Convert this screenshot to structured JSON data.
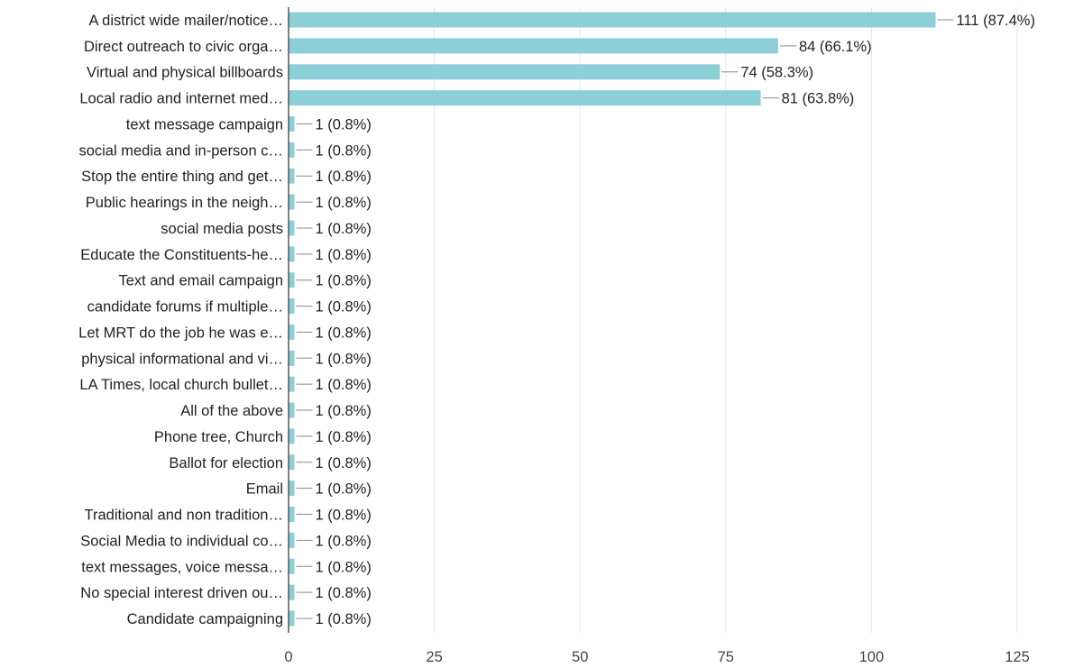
{
  "chart_data": {
    "type": "bar",
    "orientation": "horizontal",
    "title": "",
    "xlabel": "",
    "ylabel": "",
    "xlim": [
      0,
      125
    ],
    "ticks": [
      0,
      25,
      50,
      75,
      100,
      125
    ],
    "grid": true,
    "legend": "none",
    "bar_color": "#8ccfd6",
    "categories": [
      "A district wide mailer/notice…",
      "Direct outreach to civic orga…",
      "Virtual and physical billboards",
      "Local radio and internet med…",
      "text message campaign",
      "social media and in-person c…",
      "Stop the entire thing and get…",
      "Public hearings in the neigh…",
      "social media posts",
      "Educate the Constituents-he…",
      "Text and email campaign",
      "candidate forums if multiple…",
      "Let MRT do the job he was e…",
      "physical informational and vi…",
      "LA Times, local church bullet…",
      "All of the above",
      "Phone tree, Church",
      "Ballot for election",
      "Email",
      "Traditional and non tradition…",
      "Social Media to individual co…",
      "text messages, voice messa…",
      "No special interest driven ou…",
      "Candidate campaigning"
    ],
    "values": [
      111,
      84,
      74,
      81,
      1,
      1,
      1,
      1,
      1,
      1,
      1,
      1,
      1,
      1,
      1,
      1,
      1,
      1,
      1,
      1,
      1,
      1,
      1,
      1
    ],
    "value_labels": [
      "111 (87.4%)",
      "84 (66.1%)",
      "74 (58.3%)",
      "81 (63.8%)",
      "1 (0.8%)",
      "1 (0.8%)",
      "1 (0.8%)",
      "1 (0.8%)",
      "1 (0.8%)",
      "1 (0.8%)",
      "1 (0.8%)",
      "1 (0.8%)",
      "1 (0.8%)",
      "1 (0.8%)",
      "1 (0.8%)",
      "1 (0.8%)",
      "1 (0.8%)",
      "1 (0.8%)",
      "1 (0.8%)",
      "1 (0.8%)",
      "1 (0.8%)",
      "1 (0.8%)",
      "1 (0.8%)",
      "1 (0.8%)"
    ]
  }
}
